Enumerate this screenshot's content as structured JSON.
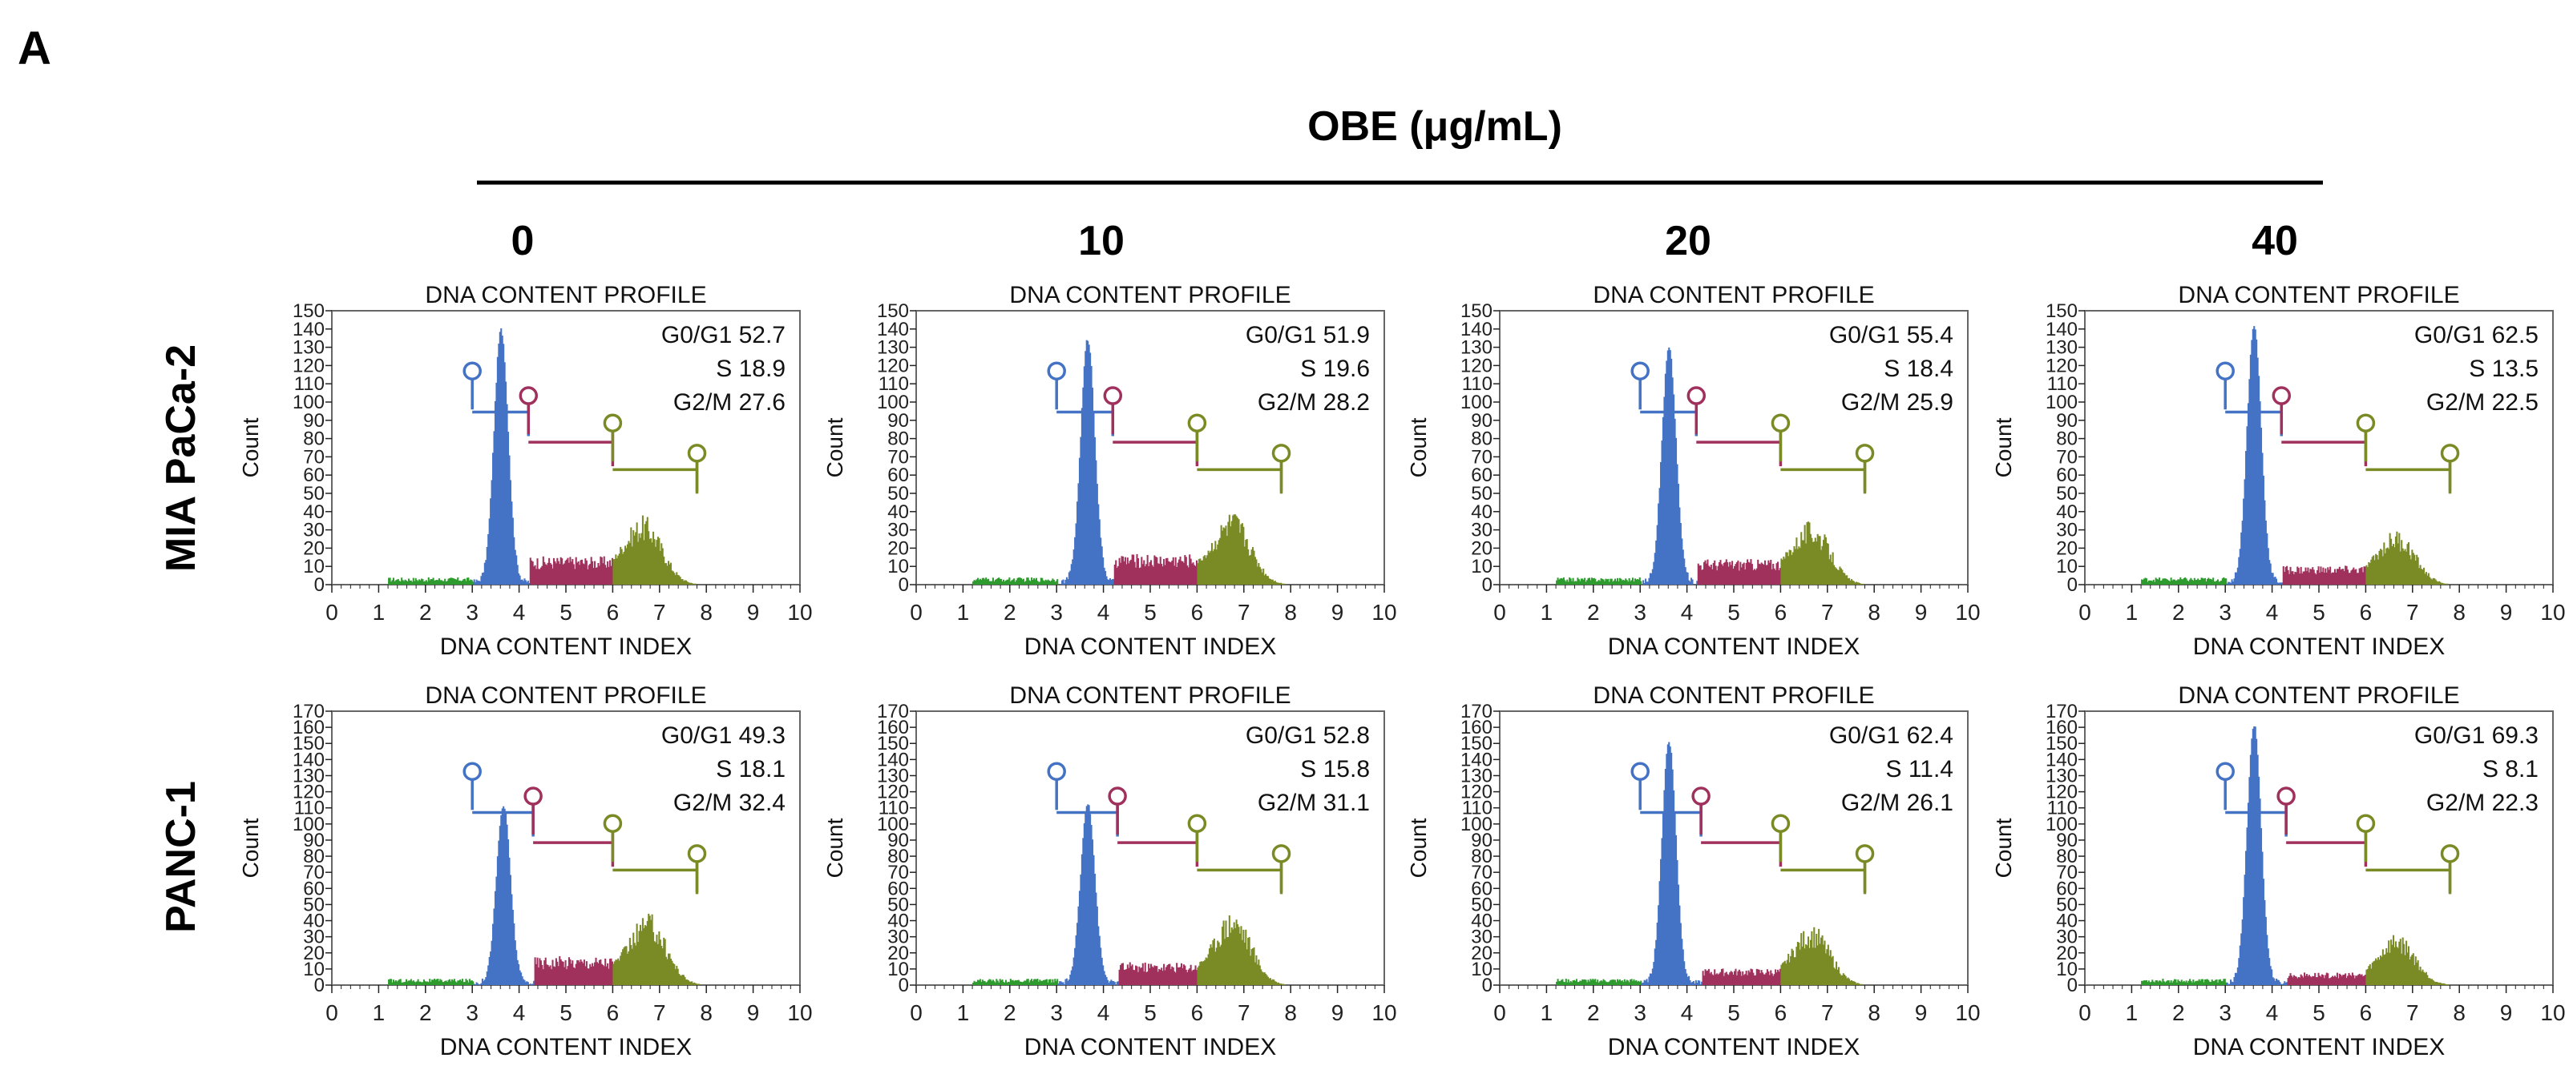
{
  "panel_label": "A",
  "header": {
    "title": "OBE (μg/mL)"
  },
  "row_labels": [
    "MIA PaCa-2",
    "PANC-1"
  ],
  "col_labels": [
    "0",
    "10",
    "20",
    "40"
  ],
  "colors": {
    "g1": "#4472C4",
    "s": "#A0315C",
    "g2m": "#7A8A24",
    "debris": "#2E9B2E",
    "axis": "#222222",
    "frame": "#666666"
  },
  "plot_labels": {
    "title": "DNA CONTENT PROFILE",
    "xlabel": "DNA CONTENT INDEX",
    "ylabel": "Count",
    "stat_names": [
      "G0/G1",
      "S",
      "G2/M"
    ]
  },
  "chart_data": [
    {
      "type": "histogram",
      "row": 0,
      "col": 0,
      "title": "DNA CONTENT PROFILE",
      "xlabel": "DNA CONTENT INDEX",
      "ylabel": "Count",
      "xlim": [
        0,
        10
      ],
      "ylim": [
        0,
        150
      ],
      "xticks": [
        "0",
        "1",
        "2",
        "3",
        "4",
        "5",
        "6",
        "7",
        "8",
        "9",
        "10"
      ],
      "yticks": [
        "0",
        "10",
        "20",
        "30",
        "40",
        "50",
        "60",
        "70",
        "80",
        "90",
        "100",
        "110",
        "120",
        "130",
        "140",
        "150"
      ],
      "stats": {
        "g1": "52.7",
        "s": "18.9",
        "g2m": "27.6"
      },
      "g1_peak": 3.6,
      "g1_height": 138,
      "s_level": 12,
      "g2_height": 30,
      "gates": {
        "g1": [
          3.0,
          4.2
        ],
        "s": [
          4.2,
          6.0
        ],
        "g2m": [
          6.0,
          7.8
        ]
      }
    },
    {
      "type": "histogram",
      "row": 0,
      "col": 1,
      "title": "DNA CONTENT PROFILE",
      "xlabel": "DNA CONTENT INDEX",
      "ylabel": "Count",
      "xlim": [
        0,
        10
      ],
      "ylim": [
        0,
        150
      ],
      "xticks": [
        "0",
        "1",
        "2",
        "3",
        "4",
        "5",
        "6",
        "7",
        "8",
        "9",
        "10"
      ],
      "yticks": [
        "0",
        "10",
        "20",
        "30",
        "40",
        "50",
        "60",
        "70",
        "80",
        "90",
        "100",
        "110",
        "120",
        "130",
        "140",
        "150"
      ],
      "stats": {
        "g1": "51.9",
        "s": "19.6",
        "g2m": "28.2"
      },
      "g1_peak": 3.65,
      "g1_height": 133,
      "s_level": 13,
      "g2_height": 32,
      "gates": {
        "g1": [
          3.0,
          4.2
        ],
        "s": [
          4.2,
          6.0
        ],
        "g2m": [
          6.0,
          7.8
        ]
      }
    },
    {
      "type": "histogram",
      "row": 0,
      "col": 2,
      "title": "DNA CONTENT PROFILE",
      "xlabel": "DNA CONTENT INDEX",
      "ylabel": "Count",
      "xlim": [
        0,
        10
      ],
      "ylim": [
        0,
        150
      ],
      "xticks": [
        "0",
        "1",
        "2",
        "3",
        "4",
        "5",
        "6",
        "7",
        "8",
        "9",
        "10"
      ],
      "yticks": [
        "0",
        "10",
        "20",
        "30",
        "40",
        "50",
        "60",
        "70",
        "80",
        "90",
        "100",
        "110",
        "120",
        "130",
        "140",
        "150"
      ],
      "stats": {
        "g1": "55.4",
        "s": "18.4",
        "g2m": "25.9"
      },
      "g1_peak": 3.6,
      "g1_height": 128,
      "s_level": 11,
      "g2_height": 28,
      "gates": {
        "g1": [
          3.0,
          4.2
        ],
        "s": [
          4.2,
          6.0
        ],
        "g2m": [
          6.0,
          7.8
        ]
      }
    },
    {
      "type": "histogram",
      "row": 0,
      "col": 3,
      "title": "DNA CONTENT PROFILE",
      "xlabel": "DNA CONTENT INDEX",
      "ylabel": "Count",
      "xlim": [
        0,
        10
      ],
      "ylim": [
        0,
        150
      ],
      "xticks": [
        "0",
        "1",
        "2",
        "3",
        "4",
        "5",
        "6",
        "7",
        "8",
        "9",
        "10"
      ],
      "yticks": [
        "0",
        "10",
        "20",
        "30",
        "40",
        "50",
        "60",
        "70",
        "80",
        "90",
        "100",
        "110",
        "120",
        "130",
        "140",
        "150"
      ],
      "stats": {
        "g1": "62.5",
        "s": "13.5",
        "g2m": "22.5"
      },
      "g1_peak": 3.6,
      "g1_height": 140,
      "s_level": 8,
      "g2_height": 24,
      "gates": {
        "g1": [
          3.0,
          4.2
        ],
        "s": [
          4.2,
          6.0
        ],
        "g2m": [
          6.0,
          7.8
        ]
      }
    },
    {
      "type": "histogram",
      "row": 1,
      "col": 0,
      "title": "DNA CONTENT PROFILE",
      "xlabel": "DNA CONTENT INDEX",
      "ylabel": "Count",
      "xlim": [
        0,
        10
      ],
      "ylim": [
        0,
        170
      ],
      "xticks": [
        "0",
        "1",
        "2",
        "3",
        "4",
        "5",
        "6",
        "7",
        "8",
        "9",
        "10"
      ],
      "yticks": [
        "0",
        "10",
        "20",
        "30",
        "40",
        "50",
        "60",
        "70",
        "80",
        "90",
        "100",
        "110",
        "120",
        "130",
        "140",
        "150",
        "160",
        "170"
      ],
      "stats": {
        "g1": "49.3",
        "s": "18.1",
        "g2m": "32.4"
      },
      "g1_peak": 3.65,
      "g1_height": 110,
      "s_level": 14,
      "g2_height": 36,
      "gates": {
        "g1": [
          3.0,
          4.3
        ],
        "s": [
          4.3,
          6.0
        ],
        "g2m": [
          6.0,
          7.8
        ]
      }
    },
    {
      "type": "histogram",
      "row": 1,
      "col": 1,
      "title": "DNA CONTENT PROFILE",
      "xlabel": "DNA CONTENT INDEX",
      "ylabel": "Count",
      "xlim": [
        0,
        10
      ],
      "ylim": [
        0,
        170
      ],
      "xticks": [
        "0",
        "1",
        "2",
        "3",
        "4",
        "5",
        "6",
        "7",
        "8",
        "9",
        "10"
      ],
      "yticks": [
        "0",
        "10",
        "20",
        "30",
        "40",
        "50",
        "60",
        "70",
        "80",
        "90",
        "100",
        "110",
        "120",
        "130",
        "140",
        "150",
        "160",
        "170"
      ],
      "stats": {
        "g1": "52.8",
        "s": "15.8",
        "g2m": "31.1"
      },
      "g1_peak": 3.65,
      "g1_height": 112,
      "s_level": 11,
      "g2_height": 38,
      "gates": {
        "g1": [
          3.0,
          4.3
        ],
        "s": [
          4.3,
          6.0
        ],
        "g2m": [
          6.0,
          7.8
        ]
      }
    },
    {
      "type": "histogram",
      "row": 1,
      "col": 2,
      "title": "DNA CONTENT PROFILE",
      "xlabel": "DNA CONTENT INDEX",
      "ylabel": "Count",
      "xlim": [
        0,
        10
      ],
      "ylim": [
        0,
        170
      ],
      "xticks": [
        "0",
        "1",
        "2",
        "3",
        "4",
        "5",
        "6",
        "7",
        "8",
        "9",
        "10"
      ],
      "yticks": [
        "0",
        "10",
        "20",
        "30",
        "40",
        "50",
        "60",
        "70",
        "80",
        "90",
        "100",
        "110",
        "120",
        "130",
        "140",
        "150",
        "160",
        "170"
      ],
      "stats": {
        "g1": "62.4",
        "s": "11.4",
        "g2m": "26.1"
      },
      "g1_peak": 3.6,
      "g1_height": 150,
      "s_level": 8,
      "g2_height": 30,
      "gates": {
        "g1": [
          3.0,
          4.3
        ],
        "s": [
          4.3,
          6.0
        ],
        "g2m": [
          6.0,
          7.8
        ]
      }
    },
    {
      "type": "histogram",
      "row": 1,
      "col": 3,
      "title": "DNA CONTENT PROFILE",
      "xlabel": "DNA CONTENT INDEX",
      "ylabel": "Count",
      "xlim": [
        0,
        10
      ],
      "ylim": [
        0,
        170
      ],
      "xticks": [
        "0",
        "1",
        "2",
        "3",
        "4",
        "5",
        "6",
        "7",
        "8",
        "9",
        "10"
      ],
      "yticks": [
        "0",
        "10",
        "20",
        "30",
        "40",
        "50",
        "60",
        "70",
        "80",
        "90",
        "100",
        "110",
        "120",
        "130",
        "140",
        "150",
        "160",
        "170"
      ],
      "stats": {
        "g1": "69.3",
        "s": "8.1",
        "g2m": "22.3"
      },
      "g1_peak": 3.6,
      "g1_height": 160,
      "s_level": 6,
      "g2_height": 26,
      "gates": {
        "g1": [
          3.0,
          4.3
        ],
        "s": [
          4.3,
          6.0
        ],
        "g2m": [
          6.0,
          7.8
        ]
      }
    }
  ]
}
